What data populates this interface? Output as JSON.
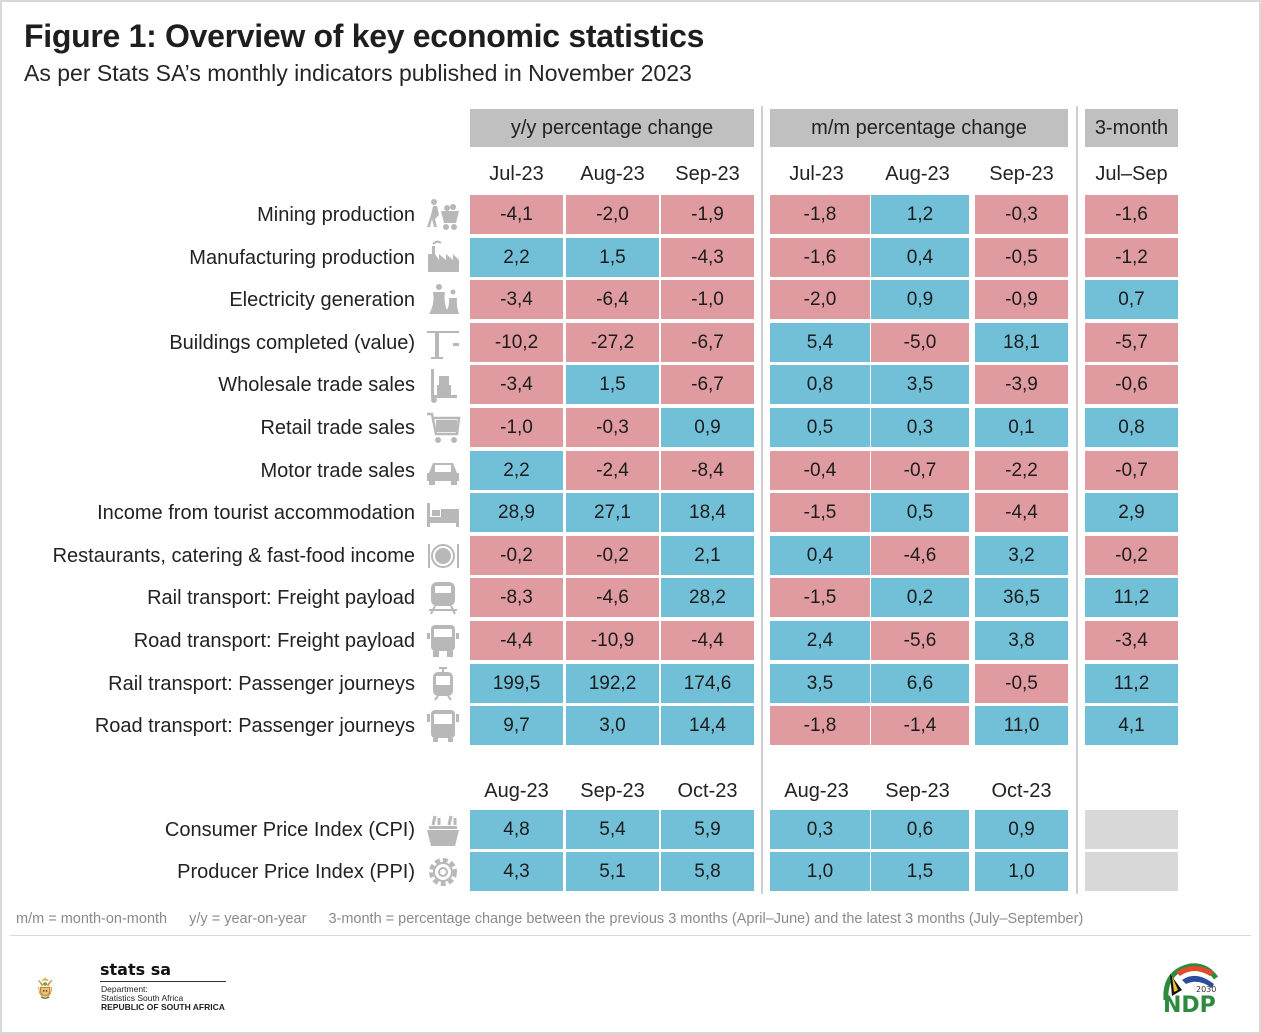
{
  "header": {
    "title": "Figure 1: Overview of key economic statistics",
    "subtitle": "As per Stats SA’s monthly indicators published in November 2023"
  },
  "colors": {
    "negative": "#df9ba0",
    "positive": "#72bfd8",
    "no_data": "#d8d8d8",
    "group_header": "#c0c0c0"
  },
  "chart_data": {
    "type": "table",
    "title": "Figure 1: Overview of key economic statistics",
    "subtitle": "As per Stats SA’s monthly indicators published in November 2023",
    "column_groups": [
      {
        "label": "y/y percentage change",
        "columns": [
          "Jul-23",
          "Aug-23",
          "Sep-23"
        ]
      },
      {
        "label": "m/m percentage change",
        "columns": [
          "Jul-23",
          "Aug-23",
          "Sep-23"
        ]
      },
      {
        "label": "3-month",
        "columns": [
          "Jul–Sep"
        ]
      }
    ],
    "rows": [
      {
        "label": "Mining production",
        "icon": "miner-cart-icon",
        "yy": [
          "-4,1",
          "-2,0",
          "-1,9"
        ],
        "mm": [
          "-1,8",
          "1,2",
          "-0,3"
        ],
        "three_month": "-1,6"
      },
      {
        "label": "Manufacturing production",
        "icon": "factory-icon",
        "yy": [
          "2,2",
          "1,5",
          "-4,3"
        ],
        "mm": [
          "-1,6",
          "0,4",
          "-0,5"
        ],
        "three_month": "-1,2"
      },
      {
        "label": "Electricity generation",
        "icon": "power-station-icon",
        "yy": [
          "-3,4",
          "-6,4",
          "-1,0"
        ],
        "mm": [
          "-2,0",
          "0,9",
          "-0,9"
        ],
        "three_month": "0,7"
      },
      {
        "label": "Buildings completed (value)",
        "icon": "crane-icon",
        "yy": [
          "-10,2",
          "-27,2",
          "-6,7"
        ],
        "mm": [
          "5,4",
          "-5,0",
          "18,1"
        ],
        "three_month": "-5,7"
      },
      {
        "label": "Wholesale trade sales",
        "icon": "hand-truck-icon",
        "yy": [
          "-3,4",
          "1,5",
          "-6,7"
        ],
        "mm": [
          "0,8",
          "3,5",
          "-3,9"
        ],
        "three_month": "-0,6"
      },
      {
        "label": "Retail trade sales",
        "icon": "shopping-cart-icon",
        "yy": [
          "-1,0",
          "-0,3",
          "0,9"
        ],
        "mm": [
          "0,5",
          "0,3",
          "0,1"
        ],
        "three_month": "0,8"
      },
      {
        "label": "Motor trade sales",
        "icon": "car-icon",
        "yy": [
          "2,2",
          "-2,4",
          "-8,4"
        ],
        "mm": [
          "-0,4",
          "-0,7",
          "-2,2"
        ],
        "three_month": "-0,7"
      },
      {
        "label": "Income from tourist accommodation",
        "icon": "bed-icon",
        "yy": [
          "28,9",
          "27,1",
          "18,4"
        ],
        "mm": [
          "-1,5",
          "0,5",
          "-4,4"
        ],
        "three_month": "2,9"
      },
      {
        "label": "Restaurants, catering & fast-food income",
        "icon": "plate-cutlery-icon",
        "yy": [
          "-0,2",
          "-0,2",
          "2,1"
        ],
        "mm": [
          "0,4",
          "-4,6",
          "3,2"
        ],
        "three_month": "-0,2"
      },
      {
        "label": "Rail transport: Freight payload",
        "icon": "locomotive-icon",
        "yy": [
          "-8,3",
          "-4,6",
          "28,2"
        ],
        "mm": [
          "-1,5",
          "0,2",
          "36,5"
        ],
        "three_month": "11,2"
      },
      {
        "label": "Road transport: Freight payload",
        "icon": "truck-icon",
        "yy": [
          "-4,4",
          "-10,9",
          "-4,4"
        ],
        "mm": [
          "2,4",
          "-5,6",
          "3,8"
        ],
        "three_month": "-3,4"
      },
      {
        "label": "Rail transport: Passenger journeys",
        "icon": "tram-icon",
        "yy": [
          "199,5",
          "192,2",
          "174,6"
        ],
        "mm": [
          "3,5",
          "6,6",
          "-0,5"
        ],
        "three_month": "11,2"
      },
      {
        "label": "Road transport: Passenger journeys",
        "icon": "bus-icon",
        "yy": [
          "9,7",
          "3,0",
          "14,4"
        ],
        "mm": [
          "-1,8",
          "-1,4",
          "11,0"
        ],
        "three_month": "4,1"
      }
    ],
    "price_columns": {
      "yy": [
        "Aug-23",
        "Sep-23",
        "Oct-23"
      ],
      "mm": [
        "Aug-23",
        "Sep-23",
        "Oct-23"
      ]
    },
    "price_rows": [
      {
        "label": "Consumer Price Index (CPI)",
        "icon": "grocery-basket-icon",
        "yy": [
          "4,8",
          "5,4",
          "5,9"
        ],
        "mm": [
          "0,3",
          "0,6",
          "0,9"
        ],
        "three_month": ""
      },
      {
        "label": "Producer Price Index (PPI)",
        "icon": "gear-icon",
        "yy": [
          "4,3",
          "5,1",
          "5,8"
        ],
        "mm": [
          "1,0",
          "1,5",
          "1,0"
        ],
        "three_month": ""
      }
    ],
    "legend": "red = negative change, blue = positive change"
  },
  "footnote": {
    "mm": "m/m = month-on-month",
    "yy": "y/y = year-on-year",
    "three_month": "3-month = percentage change between the previous 3 months (April–June) and the latest 3 months (July–September)"
  },
  "footer": {
    "org_name": "stats sa",
    "dept_line1": "Department:",
    "dept_line2": "Statistics South Africa",
    "dept_line3": "REPUBLIC OF SOUTH AFRICA",
    "ndp_label": "NDP",
    "ndp_year": "2030"
  }
}
